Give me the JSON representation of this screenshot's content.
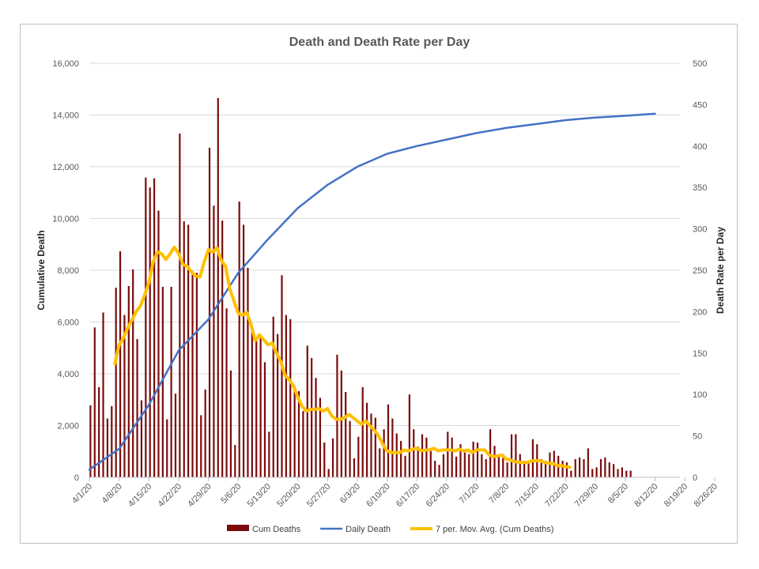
{
  "chart_data": {
    "type": "bar+line",
    "title": "Death and Death Rate per Day",
    "ylabel_left": "Cumulative Death",
    "ylabel_right": "Death Rate per Day",
    "ylim_left": [
      0,
      16000
    ],
    "ylim_right": [
      0,
      500
    ],
    "yticks_left": [
      "0",
      "2,000",
      "4,000",
      "6,000",
      "8,000",
      "10,000",
      "12,000",
      "14,000",
      "16,000"
    ],
    "yticks_right": [
      "0",
      "50",
      "100",
      "150",
      "200",
      "250",
      "300",
      "350",
      "400",
      "450",
      "500"
    ],
    "xticks": [
      "4/1/20",
      "4/8/20",
      "4/15/20",
      "4/22/20",
      "4/29/20",
      "5/6/20",
      "5/13/20",
      "5/20/20",
      "5/27/20",
      "6/3/20",
      "6/10/20",
      "6/17/20",
      "6/24/20",
      "7/1/20",
      "7/8/20",
      "7/15/20",
      "7/22/20",
      "7/29/20",
      "8/5/20",
      "8/12/20",
      "8/19/20",
      "8/26/20"
    ],
    "x_start": "4/1/20",
    "grid": true,
    "legend_position": "bottom",
    "series": [
      {
        "name": "Cum Deaths",
        "type": "bar",
        "axis": "right",
        "color": "#7b0c0c",
        "values": [
          87,
          181,
          109,
          199,
          71,
          86,
          229,
          273,
          196,
          231,
          251,
          167,
          93,
          362,
          350,
          361,
          322,
          230,
          70,
          230,
          101,
          415,
          309,
          305,
          249,
          247,
          75,
          106,
          398,
          328,
          458,
          310,
          204,
          129,
          39,
          333,
          305,
          253,
          183,
          165,
          171,
          139,
          55,
          194,
          173,
          244,
          196,
          191,
          110,
          104,
          80,
          159,
          144,
          120,
          96,
          42,
          10,
          47,
          148,
          129,
          103,
          68,
          23,
          49,
          109,
          90,
          77,
          72,
          35,
          58,
          88,
          71,
          53,
          44,
          26,
          100,
          58,
          37,
          52,
          48,
          33,
          20,
          15,
          28,
          55,
          48,
          25,
          40,
          30,
          28,
          43,
          42,
          28,
          22,
          58,
          38,
          28,
          24,
          18,
          52,
          52,
          28,
          20,
          18,
          46,
          40,
          22,
          20,
          30,
          32,
          26,
          20,
          18,
          8,
          22,
          24,
          22,
          35,
          10,
          12,
          22,
          24,
          18,
          16,
          10,
          12,
          8,
          8
        ]
      },
      {
        "name": "Daily Death",
        "type": "line",
        "axis": "left",
        "color": "#4472c4",
        "points": [
          [
            0,
            300
          ],
          [
            7,
            1100
          ],
          [
            14,
            2800
          ],
          [
            21,
            4900
          ],
          [
            28,
            6100
          ],
          [
            35,
            7900
          ],
          [
            42,
            9200
          ],
          [
            49,
            10400
          ],
          [
            56,
            11300
          ],
          [
            63,
            12000
          ],
          [
            70,
            12500
          ],
          [
            77,
            12800
          ],
          [
            84,
            13050
          ],
          [
            91,
            13300
          ],
          [
            98,
            13500
          ],
          [
            105,
            13650
          ],
          [
            112,
            13800
          ],
          [
            119,
            13900
          ],
          [
            126,
            13970
          ],
          [
            133,
            14050
          ]
        ]
      },
      {
        "name": "7 per. Mov. Avg. (Cum Deaths)",
        "type": "line",
        "axis": "right",
        "color": "#ffc000",
        "points": [
          [
            6,
            137
          ],
          [
            7,
            160
          ],
          [
            8,
            168
          ],
          [
            9,
            180
          ],
          [
            10,
            190
          ],
          [
            11,
            200
          ],
          [
            12,
            207
          ],
          [
            13,
            220
          ],
          [
            14,
            235
          ],
          [
            15,
            260
          ],
          [
            16,
            272
          ],
          [
            17,
            270
          ],
          [
            18,
            263
          ],
          [
            19,
            270
          ],
          [
            20,
            278
          ],
          [
            21,
            270
          ],
          [
            22,
            257
          ],
          [
            23,
            255
          ],
          [
            24,
            248
          ],
          [
            25,
            243
          ],
          [
            26,
            242
          ],
          [
            27,
            260
          ],
          [
            28,
            275
          ],
          [
            29,
            272
          ],
          [
            30,
            277
          ],
          [
            31,
            262
          ],
          [
            32,
            255
          ],
          [
            33,
            228
          ],
          [
            34,
            213
          ],
          [
            35,
            198
          ],
          [
            36,
            196
          ],
          [
            37,
            199
          ],
          [
            38,
            185
          ],
          [
            39,
            165
          ],
          [
            40,
            172
          ],
          [
            41,
            166
          ],
          [
            42,
            160
          ],
          [
            43,
            162
          ],
          [
            44,
            150
          ],
          [
            45,
            140
          ],
          [
            46,
            123
          ],
          [
            47,
            118
          ],
          [
            48,
            110
          ],
          [
            49,
            97
          ],
          [
            50,
            86
          ],
          [
            51,
            80
          ],
          [
            52,
            82
          ],
          [
            53,
            82
          ],
          [
            54,
            83
          ],
          [
            55,
            80
          ],
          [
            56,
            83
          ],
          [
            57,
            74
          ],
          [
            58,
            70
          ],
          [
            59,
            70
          ],
          [
            60,
            72
          ],
          [
            61,
            76
          ],
          [
            62,
            72
          ],
          [
            63,
            68
          ],
          [
            64,
            64
          ],
          [
            65,
            68
          ],
          [
            66,
            62
          ],
          [
            67,
            57
          ],
          [
            68,
            50
          ],
          [
            69,
            40
          ],
          [
            70,
            32
          ],
          [
            71,
            30
          ],
          [
            72,
            30
          ],
          [
            73,
            30
          ],
          [
            74,
            33
          ],
          [
            75,
            32
          ],
          [
            76,
            34
          ],
          [
            77,
            35
          ],
          [
            78,
            32
          ],
          [
            79,
            33
          ],
          [
            80,
            33
          ],
          [
            81,
            35
          ],
          [
            82,
            32
          ],
          [
            83,
            33
          ],
          [
            84,
            33
          ],
          [
            85,
            33
          ],
          [
            86,
            32
          ],
          [
            87,
            34
          ],
          [
            88,
            32
          ],
          [
            89,
            33
          ],
          [
            90,
            30
          ],
          [
            91,
            33
          ],
          [
            92,
            33
          ],
          [
            93,
            33
          ],
          [
            94,
            27
          ],
          [
            95,
            25
          ],
          [
            96,
            26
          ],
          [
            97,
            27
          ],
          [
            98,
            22
          ],
          [
            99,
            21
          ],
          [
            100,
            19
          ],
          [
            101,
            18
          ],
          [
            102,
            18
          ],
          [
            103,
            18
          ],
          [
            104,
            20
          ],
          [
            105,
            20
          ],
          [
            106,
            20
          ],
          [
            107,
            18
          ],
          [
            108,
            17
          ],
          [
            109,
            17
          ],
          [
            110,
            14
          ],
          [
            111,
            14
          ],
          [
            112,
            13
          ],
          [
            113,
            12
          ]
        ]
      }
    ]
  }
}
